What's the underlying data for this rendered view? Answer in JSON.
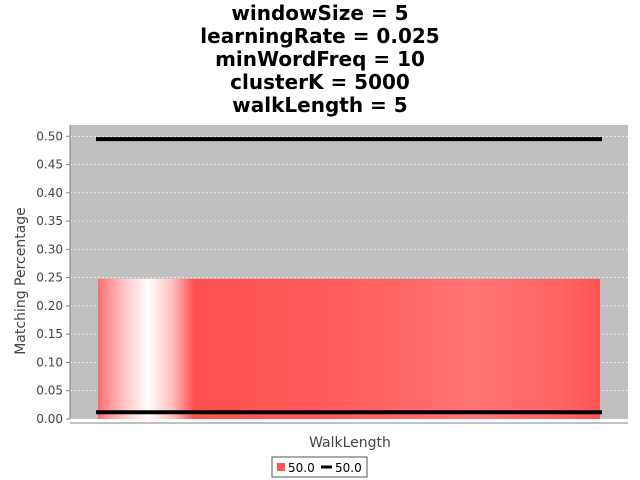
{
  "chart_data": {
    "type": "bar",
    "title_lines": [
      "windowSize = 5",
      "learningRate = 0.025",
      "minWordFreq = 10",
      "clusterK = 5000",
      "walkLength = 5"
    ],
    "xlabel": "WalkLength",
    "ylabel": "Matching Percentage",
    "ylim": [
      0,
      0.52
    ],
    "yticks": [
      "0.00",
      "0.05",
      "0.10",
      "0.15",
      "0.20",
      "0.25",
      "0.30",
      "0.35",
      "0.40",
      "0.45",
      "0.50"
    ],
    "grid": true,
    "bar_series": [
      {
        "name": "50.0",
        "value": 0.248,
        "color": "#ff5555"
      }
    ],
    "line_series": [
      {
        "name": "50.0",
        "values": [
          0.495,
          0.012
        ],
        "color": "#000000"
      }
    ],
    "plot_background": "#c0c0c0",
    "legend_position": "bottom-center"
  }
}
